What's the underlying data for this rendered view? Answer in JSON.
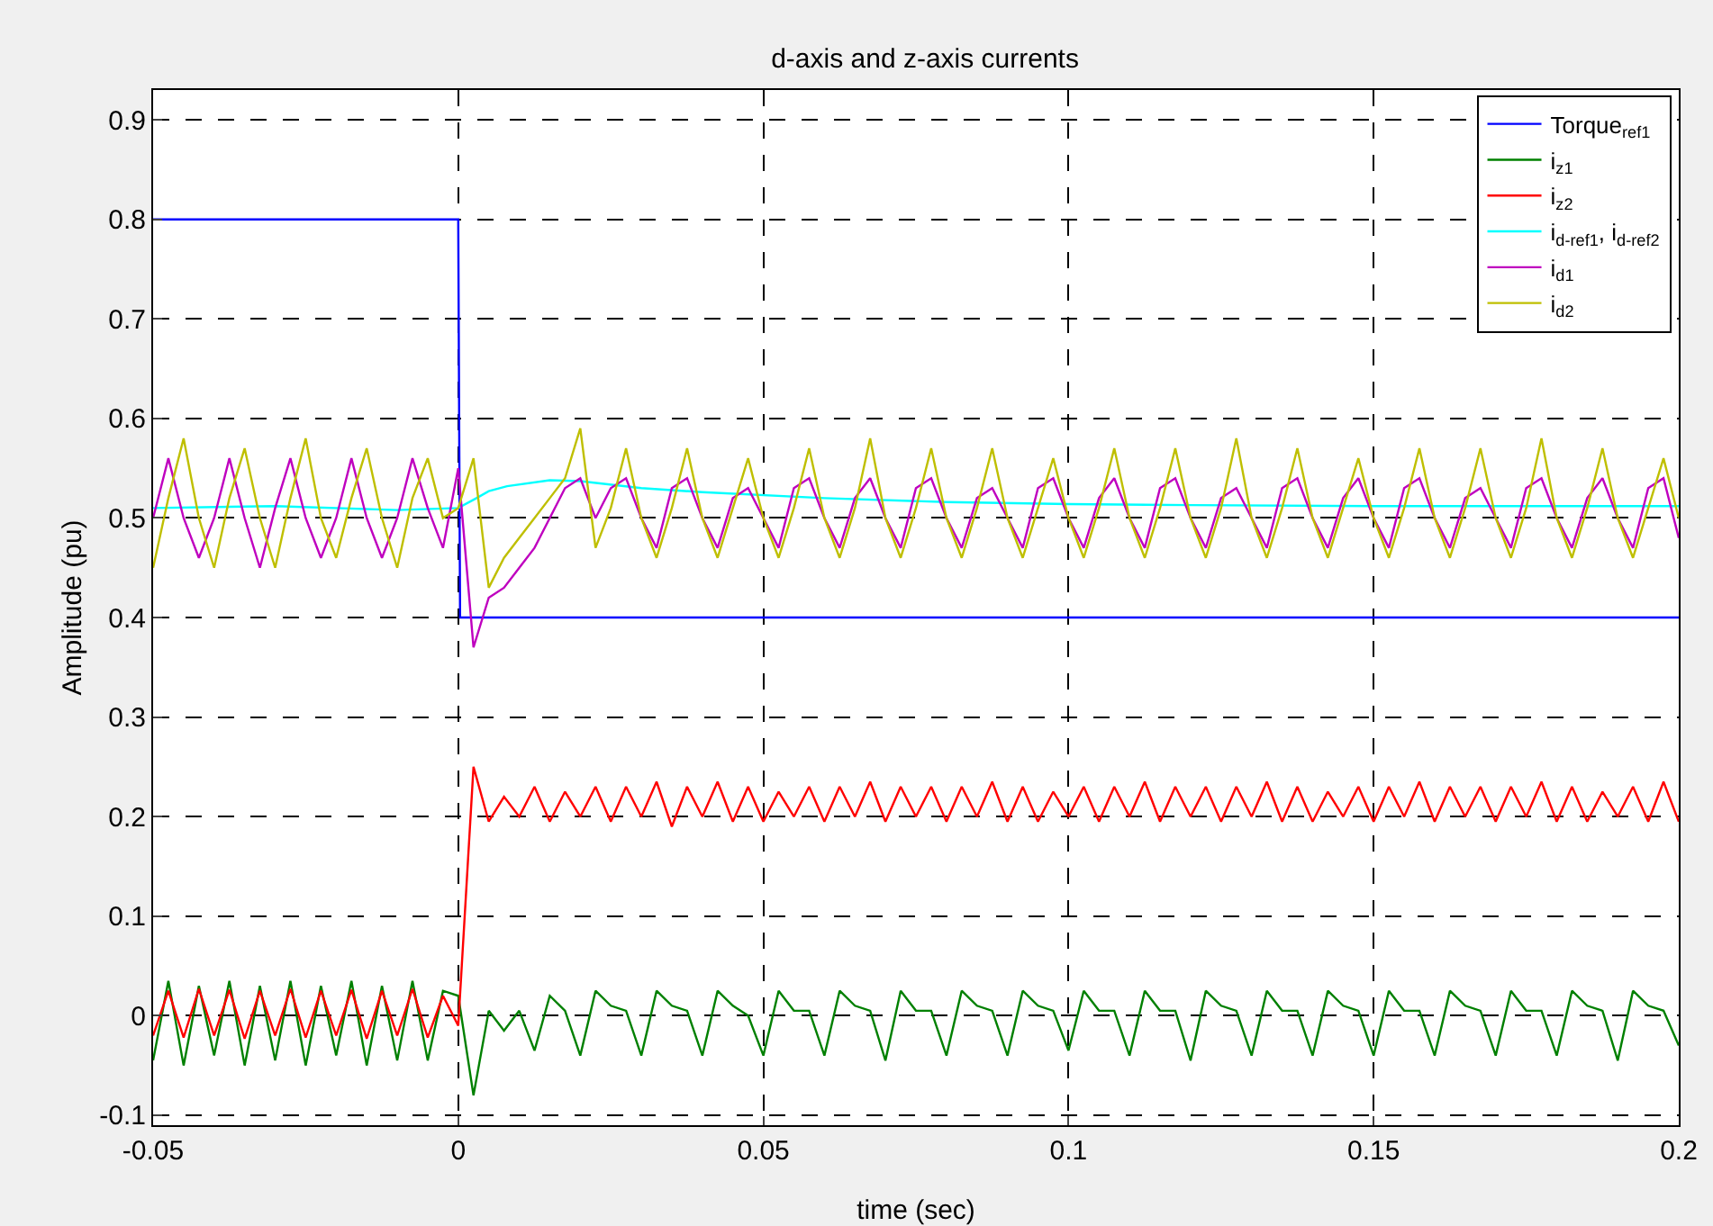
{
  "chart_data": {
    "type": "line",
    "title": "d-axis and z-axis currents",
    "xlabel": "time (sec)",
    "ylabel": "Amplitude (pu)",
    "x": [
      -0.05,
      -0.0475,
      -0.045,
      -0.0425,
      -0.04,
      -0.0375,
      -0.035,
      -0.0325,
      -0.03,
      -0.0275,
      -0.025,
      -0.0225,
      -0.02,
      -0.0175,
      -0.015,
      -0.0125,
      -0.01,
      -0.0075,
      -0.005,
      -0.0025,
      0,
      0.0025,
      0.005,
      0.0075,
      0.01,
      0.0125,
      0.015,
      0.0175,
      0.02,
      0.0225,
      0.025,
      0.0275,
      0.03,
      0.0325,
      0.035,
      0.0375,
      0.04,
      0.0425,
      0.045,
      0.0475,
      0.05,
      0.0525,
      0.055,
      0.0575,
      0.06,
      0.0625,
      0.065,
      0.0675,
      0.07,
      0.0725,
      0.075,
      0.0775,
      0.08,
      0.0825,
      0.085,
      0.0875,
      0.09,
      0.0925,
      0.095,
      0.0975,
      0.1,
      0.1025,
      0.105,
      0.1075,
      0.11,
      0.1125,
      0.115,
      0.1175,
      0.12,
      0.1225,
      0.125,
      0.1275,
      0.13,
      0.1325,
      0.135,
      0.1375,
      0.14,
      0.1425,
      0.145,
      0.1475,
      0.15,
      0.1525,
      0.155,
      0.1575,
      0.16,
      0.1625,
      0.165,
      0.1675,
      0.17,
      0.1725,
      0.175,
      0.1775,
      0.18,
      0.1825,
      0.185,
      0.1875,
      0.19,
      0.1925,
      0.195,
      0.1975,
      0.2
    ],
    "series": [
      {
        "name": "Torque$_{ref1}$",
        "color": "#0000ff",
        "x": [
          -0.05,
          0,
          0.0003,
          0.2
        ],
        "values": [
          0.8,
          0.8,
          0.4,
          0.4
        ]
      },
      {
        "name": "i$_{z1}$",
        "color": "#008000",
        "values": [
          -0.045,
          0.035,
          -0.05,
          0.03,
          -0.04,
          0.035,
          -0.05,
          0.03,
          -0.045,
          0.035,
          -0.05,
          0.03,
          -0.04,
          0.035,
          -0.05,
          0.03,
          -0.045,
          0.035,
          -0.045,
          0.025,
          0.02,
          -0.08,
          0.005,
          -0.015,
          0.005,
          -0.035,
          0.02,
          0.005,
          -0.04,
          0.025,
          0.01,
          0.005,
          -0.04,
          0.025,
          0.01,
          0.005,
          -0.04,
          0.025,
          0.01,
          0.0,
          -0.04,
          0.025,
          0.005,
          0.005,
          -0.04,
          0.025,
          0.01,
          0.005,
          -0.045,
          0.025,
          0.005,
          0.005,
          -0.04,
          0.025,
          0.01,
          0.005,
          -0.04,
          0.025,
          0.01,
          0.005,
          -0.035,
          0.025,
          0.005,
          0.005,
          -0.04,
          0.025,
          0.005,
          0.005,
          -0.045,
          0.025,
          0.01,
          0.005,
          -0.04,
          0.025,
          0.005,
          0.005,
          -0.04,
          0.025,
          0.01,
          0.005,
          -0.04,
          0.025,
          0.005,
          0.005,
          -0.04,
          0.025,
          0.01,
          0.005,
          -0.04,
          0.025,
          0.005,
          0.005,
          -0.04,
          0.025,
          0.01,
          0.005,
          -0.045,
          0.025,
          0.01,
          0.005,
          -0.03
        ]
      },
      {
        "name": "i$_{z2}$",
        "color": "#ff0000",
        "values": [
          -0.02,
          0.025,
          -0.022,
          0.027,
          -0.02,
          0.026,
          -0.023,
          0.025,
          -0.02,
          0.027,
          -0.022,
          0.025,
          -0.02,
          0.026,
          -0.023,
          0.025,
          -0.02,
          0.027,
          -0.022,
          0.02,
          -0.01,
          0.25,
          0.195,
          0.22,
          0.2,
          0.23,
          0.195,
          0.225,
          0.2,
          0.23,
          0.195,
          0.23,
          0.2,
          0.235,
          0.19,
          0.23,
          0.2,
          0.235,
          0.195,
          0.23,
          0.195,
          0.225,
          0.2,
          0.23,
          0.195,
          0.23,
          0.2,
          0.235,
          0.195,
          0.23,
          0.2,
          0.23,
          0.195,
          0.23,
          0.2,
          0.235,
          0.195,
          0.23,
          0.195,
          0.225,
          0.2,
          0.23,
          0.195,
          0.23,
          0.2,
          0.235,
          0.195,
          0.23,
          0.2,
          0.23,
          0.195,
          0.23,
          0.2,
          0.235,
          0.195,
          0.23,
          0.195,
          0.225,
          0.2,
          0.23,
          0.195,
          0.23,
          0.2,
          0.235,
          0.195,
          0.23,
          0.2,
          0.23,
          0.195,
          0.23,
          0.2,
          0.235,
          0.195,
          0.23,
          0.195,
          0.225,
          0.2,
          0.23,
          0.195,
          0.235,
          0.195
        ]
      },
      {
        "name": "i$_{d-ref1}$, i$_{d-ref2}$",
        "color": "#00ffff",
        "x": [
          -0.05,
          -0.03,
          -0.01,
          0,
          0.003,
          0.005,
          0.008,
          0.015,
          0.02,
          0.03,
          0.04,
          0.06,
          0.08,
          0.1,
          0.12,
          0.15,
          0.2
        ],
        "values": [
          0.51,
          0.512,
          0.508,
          0.51,
          0.52,
          0.527,
          0.532,
          0.538,
          0.537,
          0.53,
          0.526,
          0.52,
          0.516,
          0.514,
          0.513,
          0.512,
          0.512
        ]
      },
      {
        "name": "i$_{d1}$",
        "color": "#bf00bf",
        "values": [
          0.5,
          0.56,
          0.5,
          0.46,
          0.5,
          0.56,
          0.5,
          0.45,
          0.51,
          0.56,
          0.5,
          0.46,
          0.5,
          0.56,
          0.5,
          0.46,
          0.5,
          0.56,
          0.51,
          0.47,
          0.55,
          0.37,
          0.42,
          0.43,
          0.45,
          0.47,
          0.5,
          0.53,
          0.54,
          0.5,
          0.53,
          0.54,
          0.5,
          0.47,
          0.53,
          0.54,
          0.5,
          0.47,
          0.52,
          0.53,
          0.5,
          0.47,
          0.53,
          0.54,
          0.5,
          0.47,
          0.52,
          0.54,
          0.5,
          0.47,
          0.53,
          0.54,
          0.5,
          0.47,
          0.52,
          0.53,
          0.5,
          0.47,
          0.53,
          0.54,
          0.5,
          0.47,
          0.52,
          0.54,
          0.5,
          0.47,
          0.53,
          0.54,
          0.5,
          0.47,
          0.52,
          0.53,
          0.5,
          0.47,
          0.53,
          0.54,
          0.5,
          0.47,
          0.52,
          0.54,
          0.5,
          0.47,
          0.53,
          0.54,
          0.5,
          0.47,
          0.52,
          0.53,
          0.5,
          0.47,
          0.53,
          0.54,
          0.5,
          0.47,
          0.52,
          0.54,
          0.5,
          0.47,
          0.53,
          0.54,
          0.48
        ]
      },
      {
        "name": "i$_{d2}$",
        "color": "#bfbf00",
        "values": [
          0.45,
          0.52,
          0.58,
          0.5,
          0.45,
          0.52,
          0.57,
          0.5,
          0.45,
          0.52,
          0.58,
          0.5,
          0.46,
          0.52,
          0.57,
          0.5,
          0.45,
          0.52,
          0.56,
          0.5,
          0.51,
          0.56,
          0.43,
          0.46,
          0.48,
          0.5,
          0.52,
          0.54,
          0.59,
          0.47,
          0.51,
          0.57,
          0.5,
          0.46,
          0.51,
          0.57,
          0.5,
          0.46,
          0.51,
          0.56,
          0.5,
          0.46,
          0.51,
          0.57,
          0.5,
          0.46,
          0.51,
          0.58,
          0.5,
          0.46,
          0.51,
          0.57,
          0.5,
          0.46,
          0.51,
          0.57,
          0.5,
          0.46,
          0.51,
          0.56,
          0.5,
          0.46,
          0.51,
          0.57,
          0.5,
          0.46,
          0.51,
          0.57,
          0.5,
          0.46,
          0.51,
          0.58,
          0.5,
          0.46,
          0.51,
          0.57,
          0.5,
          0.46,
          0.51,
          0.56,
          0.5,
          0.46,
          0.51,
          0.57,
          0.5,
          0.46,
          0.51,
          0.57,
          0.5,
          0.46,
          0.51,
          0.58,
          0.5,
          0.46,
          0.51,
          0.57,
          0.5,
          0.46,
          0.51,
          0.56,
          0.5
        ]
      }
    ],
    "xlim": [
      -0.05,
      0.2
    ],
    "xticks": [
      -0.05,
      0,
      0.05,
      0.1,
      0.15,
      0.2
    ],
    "ylim": [
      -0.11,
      0.93
    ],
    "yticks": [
      -0.1,
      0,
      0.1,
      0.2,
      0.3,
      0.4,
      0.5,
      0.6,
      0.7,
      0.8,
      0.9
    ],
    "grid": true,
    "legend": "top right",
    "marker": "none",
    "line_style": "solid"
  }
}
